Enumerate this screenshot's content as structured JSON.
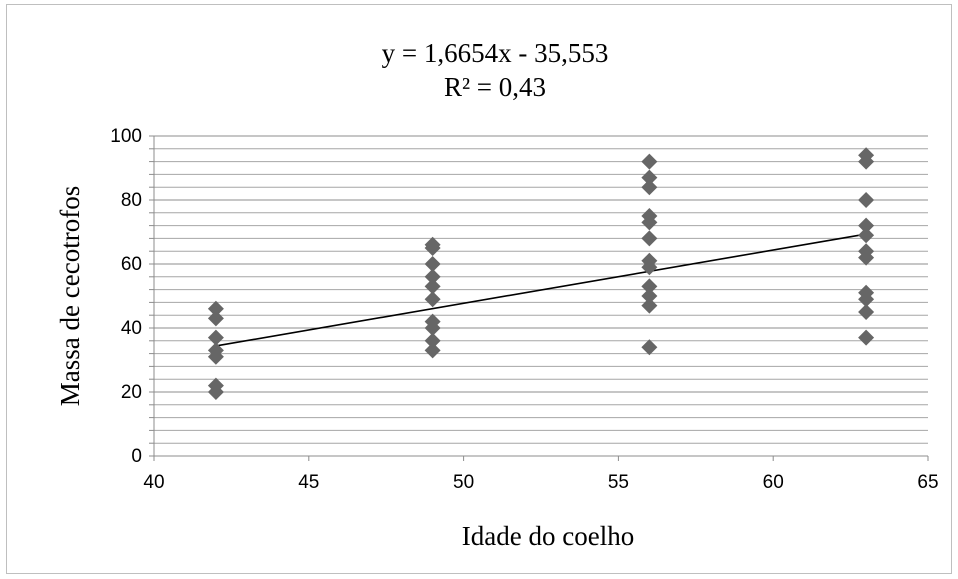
{
  "chart_data": {
    "type": "scatter",
    "title": "",
    "annotations": [
      "y = 1,6654x - 35,553",
      "R² = 0,43"
    ],
    "xlabel": "Idade do coelho",
    "ylabel": "Massa de cecotrofos",
    "xlim": [
      40,
      65
    ],
    "ylim": [
      0,
      100
    ],
    "xticks": [
      "40",
      "45",
      "50",
      "55",
      "60",
      "65"
    ],
    "yticks": [
      "0",
      "20",
      "40",
      "60",
      "80",
      "100"
    ],
    "y_minor_step": 4,
    "grid": true,
    "legend": "none",
    "marker_color": "#666666",
    "trendline": {
      "slope": 1.6654,
      "intercept": -35.553,
      "x_range": [
        42,
        63
      ]
    },
    "series": [
      {
        "points": [
          [
            42,
            46
          ],
          [
            42,
            43
          ],
          [
            42,
            37
          ],
          [
            42,
            33
          ],
          [
            42,
            31
          ],
          [
            42,
            22
          ],
          [
            42,
            20
          ],
          [
            49,
            66
          ],
          [
            49,
            65
          ],
          [
            49,
            60
          ],
          [
            49,
            56
          ],
          [
            49,
            53
          ],
          [
            49,
            49
          ],
          [
            49,
            42
          ],
          [
            49,
            40
          ],
          [
            49,
            36
          ],
          [
            49,
            33
          ],
          [
            56,
            92
          ],
          [
            56,
            87
          ],
          [
            56,
            84
          ],
          [
            56,
            75
          ],
          [
            56,
            73
          ],
          [
            56,
            68
          ],
          [
            56,
            61
          ],
          [
            56,
            59
          ],
          [
            56,
            53
          ],
          [
            56,
            50
          ],
          [
            56,
            47
          ],
          [
            56,
            34
          ],
          [
            63,
            94
          ],
          [
            63,
            92
          ],
          [
            63,
            80
          ],
          [
            63,
            72
          ],
          [
            63,
            69
          ],
          [
            63,
            64
          ],
          [
            63,
            62
          ],
          [
            63,
            51
          ],
          [
            63,
            49
          ],
          [
            63,
            45
          ],
          [
            63,
            37
          ]
        ]
      }
    ]
  }
}
